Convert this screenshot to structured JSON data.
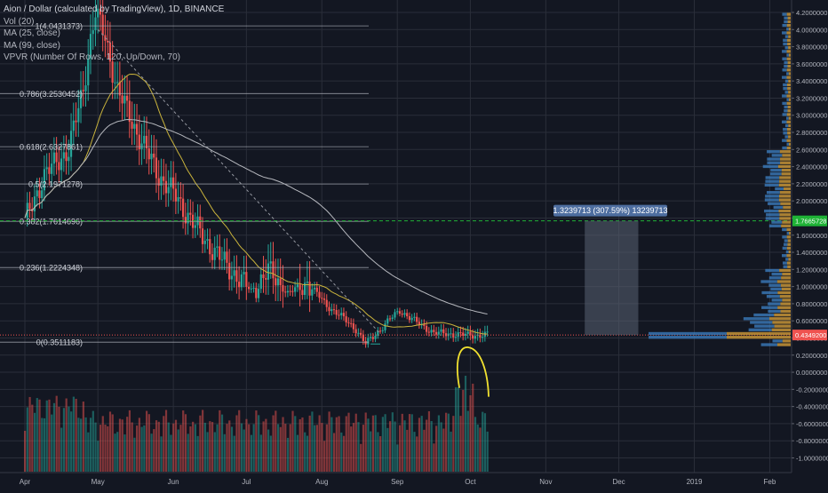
{
  "chart_data": {
    "type": "candlestick",
    "title": "Aion / Dollar (calculated by TradingView), 1D, BINANCE",
    "indicators": [
      "Vol (20)",
      "MA (25, close)",
      "MA (99, close)",
      "VPVR (Number Of Rows, 120, Up/Down, 70)"
    ],
    "x_ticks": [
      "Apr",
      "May",
      "Jun",
      "Jul",
      "Aug",
      "Sep",
      "Oct",
      "Nov",
      "Dec",
      "2019",
      "Feb"
    ],
    "y_ticks": [
      "4.2000000",
      "4.0000000",
      "3.8000000",
      "3.6000000",
      "3.4000000",
      "3.2000000",
      "3.0000000",
      "2.8000000",
      "2.6000000",
      "2.4000000",
      "2.2000000",
      "2.0000000",
      "1.8000000",
      "1.6000000",
      "1.4000000",
      "1.2000000",
      "1.0000000",
      "0.8000000",
      "0.6000000",
      "0.4000000",
      "0.2000000",
      "0.0000000",
      "-0.2000000",
      "-0.4000000",
      "-0.6000000",
      "-0.8000000",
      "-1.0000000"
    ],
    "y_range": [
      -1.0,
      4.2
    ],
    "fib_levels": [
      {
        "label": "1(4.0431373)",
        "value": 4.0431373
      },
      {
        "label": "0.786(3.2530452)",
        "value": 3.2530452
      },
      {
        "label": "0.618(2.6327861)",
        "value": 2.6327861
      },
      {
        "label": "0.5(2.1971278)",
        "value": 2.1971278
      },
      {
        "label": "0.382(1.7614696)",
        "value": 1.7614696
      },
      {
        "label": "0.236(1.2224348)",
        "value": 1.2224348
      },
      {
        "label": "0(0.3511183)",
        "value": 0.3511183
      }
    ],
    "current_price": {
      "label": "0.4349200",
      "value": 0.43492
    },
    "target_price": {
      "label": "1.7665728",
      "value": 1.7665728
    },
    "measure_label": "1.3239713 (307.59%) 13239713",
    "colors": {
      "background": "#131722",
      "up": "#26a69a",
      "down": "#ef5350",
      "ma25": "#c9b33c",
      "ma99": "#b6b8be",
      "grid": "#2a2e39",
      "axis_text": "#b2b5be",
      "target": "#1fb336",
      "current": "#ef5350",
      "measure_fill": "#5a6273",
      "measure_label_bg": "#4e6ea0",
      "annotation": "#f0e030",
      "vpvr_up": "#3d82c6",
      "vpvr_down": "#dea43a"
    }
  }
}
